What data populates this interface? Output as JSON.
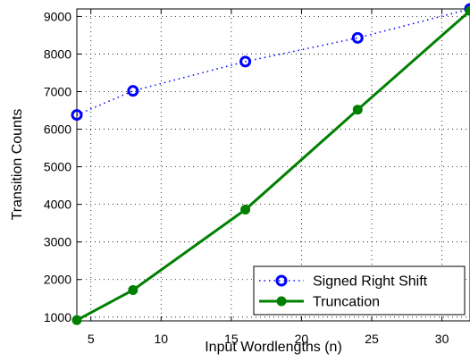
{
  "chart_data": {
    "type": "line",
    "xlabel": "Input Wordlengths (n)",
    "ylabel": "Transition Counts",
    "xlim": [
      4,
      32
    ],
    "ylim": [
      900,
      9200
    ],
    "xticks": [
      5,
      10,
      15,
      20,
      25,
      30
    ],
    "yticks": [
      1000,
      2000,
      3000,
      4000,
      5000,
      6000,
      7000,
      8000,
      9000
    ],
    "grid": true,
    "legend_position": "bottom-right",
    "series": [
      {
        "name": "Signed Right Shift",
        "x": [
          4,
          8,
          16,
          24,
          32
        ],
        "values": [
          6380,
          7020,
          7800,
          8430,
          9200
        ],
        "color": "#0000ff",
        "line_style": "dotted",
        "marker": "circle-open"
      },
      {
        "name": "Truncation",
        "x": [
          4,
          8,
          16,
          24,
          32
        ],
        "values": [
          920,
          1720,
          3860,
          6520,
          9150
        ],
        "color": "#008000",
        "line_style": "solid",
        "marker": "circle-filled"
      }
    ]
  }
}
